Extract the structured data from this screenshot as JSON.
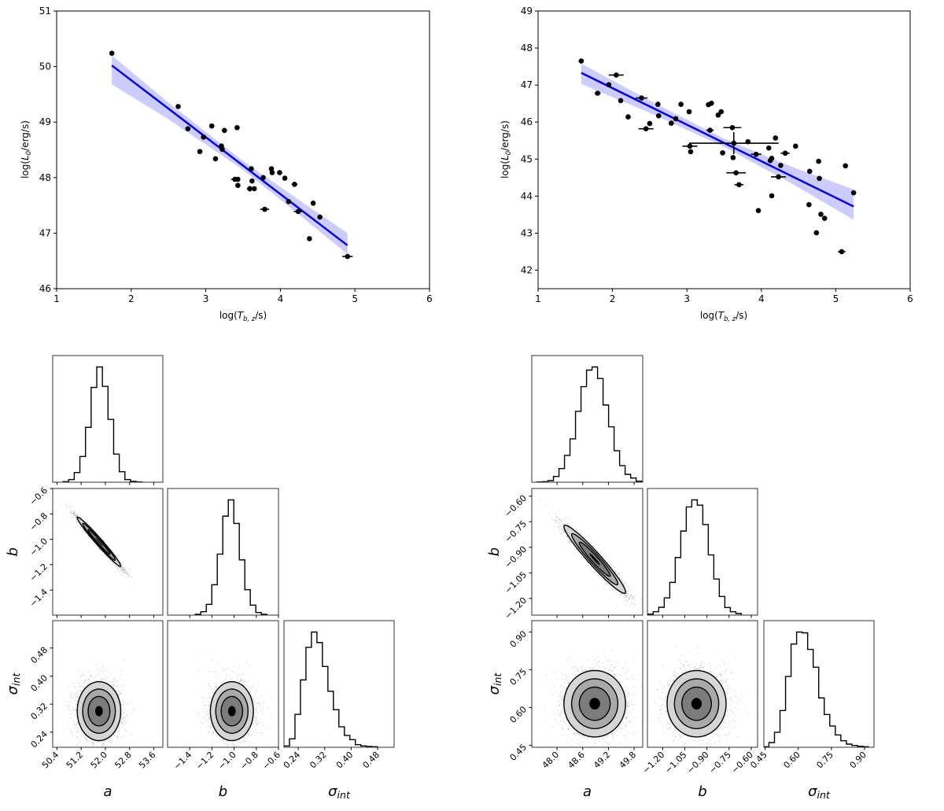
{
  "chart_data": [
    {
      "type": "scatter",
      "xlabel": {
        "pre": "log(",
        "sym": "T",
        "sub": "b, z",
        "post": "/s)"
      },
      "ylabel": {
        "pre": "log(",
        "sym": "L",
        "sub": "0",
        "post": "/erg/s)"
      },
      "xlim": [
        1,
        6
      ],
      "ylim": [
        46,
        51
      ],
      "xticks": [
        "1",
        "2",
        "3",
        "4",
        "5",
        "6"
      ],
      "yticks": [
        "46",
        "47",
        "48",
        "49",
        "50",
        "51"
      ],
      "grid": false,
      "colors": {
        "points": "#000000",
        "line": "#0000ee",
        "band": "#ccccff"
      },
      "points": [
        [
          1.74,
          50.24,
          0,
          0
        ],
        [
          2.63,
          49.28,
          0,
          0
        ],
        [
          2.76,
          48.88,
          0,
          0
        ],
        [
          2.97,
          48.73,
          0,
          0
        ],
        [
          2.92,
          48.47,
          0,
          0
        ],
        [
          3.08,
          48.93,
          0.03,
          0.03
        ],
        [
          3.25,
          48.85,
          0,
          0
        ],
        [
          3.13,
          48.34,
          0,
          0
        ],
        [
          3.21,
          48.57,
          0,
          0
        ],
        [
          3.22,
          48.51,
          0,
          0
        ],
        [
          3.42,
          48.9,
          0,
          0
        ],
        [
          3.39,
          47.97,
          0.05,
          0
        ],
        [
          3.43,
          47.97,
          0,
          0
        ],
        [
          3.43,
          47.86,
          0,
          0
        ],
        [
          3.61,
          48.16,
          0,
          0
        ],
        [
          3.62,
          47.94,
          0,
          0
        ],
        [
          3.59,
          47.8,
          0.04,
          0.05
        ],
        [
          3.65,
          47.8,
          0,
          0
        ],
        [
          3.77,
          48.0,
          0,
          0
        ],
        [
          3.79,
          47.43,
          0.06,
          0
        ],
        [
          3.88,
          48.16,
          0,
          0
        ],
        [
          3.89,
          48.09,
          0,
          0
        ],
        [
          3.99,
          48.09,
          0,
          0
        ],
        [
          4.06,
          47.99,
          0,
          0
        ],
        [
          4.19,
          47.88,
          0.04,
          0
        ],
        [
          4.11,
          47.57,
          0,
          0
        ],
        [
          4.24,
          47.39,
          0.06,
          0.03
        ],
        [
          4.44,
          47.54,
          0,
          0
        ],
        [
          4.53,
          47.29,
          0,
          0
        ],
        [
          4.39,
          46.9,
          0,
          0
        ],
        [
          4.9,
          46.58,
          0.07,
          0
        ]
      ],
      "fit_line": {
        "x": [
          1.74,
          4.9
        ],
        "y": [
          50.02,
          46.78
        ]
      },
      "band": {
        "x": [
          1.74,
          2.5,
          3.5,
          4.3,
          4.9
        ],
        "lower": [
          49.68,
          49.05,
          48.14,
          47.28,
          46.62
        ],
        "upper": [
          50.2,
          49.35,
          48.3,
          47.55,
          47.0
        ]
      }
    },
    {
      "type": "scatter",
      "xlabel": {
        "pre": "log(",
        "sym": "T",
        "sub": "b, z",
        "post": "/s)"
      },
      "ylabel": {
        "pre": "log(",
        "sym": "L",
        "sub": "0",
        "post": "/erg/s)"
      },
      "xlim": [
        1,
        6
      ],
      "ylim": [
        41.5,
        49
      ],
      "xticks": [
        "1",
        "2",
        "3",
        "4",
        "5",
        "6"
      ],
      "yticks": [
        "42",
        "43",
        "44",
        "45",
        "46",
        "47",
        "48",
        "49"
      ],
      "grid": false,
      "colors": {
        "points": "#000000",
        "line": "#0000ee",
        "band": "#ccccff"
      },
      "points": [
        [
          1.58,
          47.65,
          0.03,
          0
        ],
        [
          1.8,
          46.78,
          0.04,
          0
        ],
        [
          1.95,
          47.01,
          0,
          0
        ],
        [
          2.05,
          47.27,
          0.1,
          0
        ],
        [
          2.11,
          46.58,
          0,
          0
        ],
        [
          2.21,
          46.14,
          0,
          0
        ],
        [
          2.39,
          46.65,
          0.08,
          0
        ],
        [
          2.45,
          45.82,
          0.1,
          0
        ],
        [
          2.5,
          45.96,
          0,
          0
        ],
        [
          2.61,
          46.48,
          0,
          0
        ],
        [
          2.62,
          46.17,
          0,
          0
        ],
        [
          2.79,
          45.97,
          0,
          0
        ],
        [
          2.85,
          46.09,
          0,
          0
        ],
        [
          2.92,
          46.48,
          0,
          0
        ],
        [
          3.03,
          46.28,
          0,
          0
        ],
        [
          3.04,
          45.35,
          0.1,
          0
        ],
        [
          3.05,
          45.2,
          0,
          0
        ],
        [
          3.29,
          46.47,
          0,
          0
        ],
        [
          3.33,
          46.51,
          0,
          0
        ],
        [
          3.42,
          46.19,
          0,
          0
        ],
        [
          3.46,
          46.28,
          0,
          0
        ],
        [
          3.31,
          45.78,
          0.05,
          0
        ],
        [
          3.48,
          45.17,
          0,
          0
        ],
        [
          3.61,
          45.85,
          0.12,
          0
        ],
        [
          3.63,
          45.43,
          0.6,
          0.3
        ],
        [
          3.62,
          45.04,
          0,
          0
        ],
        [
          3.66,
          44.63,
          0.13,
          0
        ],
        [
          3.7,
          44.31,
          0.06,
          0
        ],
        [
          3.82,
          45.47,
          0,
          0
        ],
        [
          3.93,
          45.13,
          0.07,
          0
        ],
        [
          4.1,
          45.3,
          0,
          0
        ],
        [
          4.19,
          45.57,
          0,
          0
        ],
        [
          4.12,
          44.96,
          0,
          0
        ],
        [
          4.14,
          45.02,
          0,
          0
        ],
        [
          4.26,
          44.83,
          0,
          0
        ],
        [
          4.23,
          44.52,
          0.1,
          0.05
        ],
        [
          4.32,
          45.16,
          0.06,
          0
        ],
        [
          4.46,
          45.35,
          0,
          0
        ],
        [
          4.14,
          44.01,
          0,
          0
        ],
        [
          3.96,
          43.61,
          0,
          0
        ],
        [
          4.65,
          44.67,
          0,
          0
        ],
        [
          4.64,
          43.77,
          0.03,
          0
        ],
        [
          4.77,
          44.94,
          0,
          0
        ],
        [
          4.78,
          44.48,
          0,
          0
        ],
        [
          4.8,
          43.51,
          0,
          0
        ],
        [
          4.85,
          43.4,
          0,
          0
        ],
        [
          4.74,
          43.01,
          0,
          0
        ],
        [
          5.08,
          42.5,
          0.05,
          0
        ],
        [
          5.13,
          44.82,
          0,
          0
        ],
        [
          5.24,
          44.09,
          0,
          0
        ]
      ],
      "fit_line": {
        "x": [
          1.58,
          5.24
        ],
        "y": [
          47.33,
          43.72
        ]
      },
      "band": {
        "x": [
          1.58,
          2.5,
          3.5,
          4.4,
          5.24
        ],
        "lower": [
          47.03,
          46.25,
          45.33,
          44.35,
          43.36
        ],
        "upper": [
          47.58,
          46.58,
          45.55,
          44.8,
          44.18
        ]
      }
    },
    {
      "type": "corner",
      "params": [
        {
          "sym": "a",
          "sub": "",
          "xlim": [
            50.26,
            53.9
          ],
          "ylim": [
            50.26,
            53.9
          ],
          "ticks": [
            "50.4",
            "51.2",
            "52.0",
            "52.8",
            "53.6"
          ]
        },
        {
          "sym": "b",
          "sub": "",
          "xlim": [
            -1.6,
            -0.6
          ],
          "ylim": [
            -1.597,
            -0.6
          ],
          "ticks": [
            "−1.4",
            "−1.2",
            "−1.0",
            "−0.8",
            "−0.6"
          ]
        },
        {
          "sym": "σ",
          "sub": "int",
          "xlim": [
            0.197,
            0.53
          ],
          "ylim": [
            0.197,
            0.558
          ],
          "ticks": [
            "0.24",
            "0.32",
            "0.40",
            "0.48"
          ]
        }
      ],
      "histograms": [
        {
          "bin_start": 50.6,
          "bin_width": 0.186,
          "counts": [
            2,
            10,
            37,
            98,
            209,
            361,
            439,
            365,
            239,
            107,
            40,
            10,
            3,
            1
          ]
        },
        {
          "bin_start": -1.35,
          "bin_width": 0.0496,
          "counts": [
            3,
            13,
            41,
            116,
            233,
            378,
            440,
            350,
            211,
            97,
            38,
            10,
            3
          ]
        },
        {
          "bin_start": 0.197,
          "bin_width": 0.0166,
          "counts": [
            5,
            32,
            125,
            256,
            380,
            438,
            398,
            307,
            213,
            143,
            78,
            45,
            29,
            10,
            5,
            3,
            2
          ]
        }
      ],
      "contour_summary": {
        "mean": [
          51.79,
          -1.02,
          0.3
        ],
        "std": [
          0.36,
          0.097,
          0.042
        ],
        "corr": [
          [
            1,
            -0.98,
            0
          ],
          [
            -0.98,
            1,
            0
          ],
          [
            0,
            0,
            1
          ]
        ]
      },
      "colors": {
        "hist": "#000000",
        "samples": "#444444",
        "levels": [
          "#d6d6d6",
          "#a9a9a9",
          "#7c7c7c",
          "#000000"
        ]
      }
    },
    {
      "type": "corner",
      "params": [
        {
          "sym": "a",
          "sub": "",
          "xlim": [
            47.41,
            50.0
          ],
          "ylim": [
            47.41,
            50.0
          ],
          "ticks": [
            "48.0",
            "48.6",
            "49.2",
            "49.8"
          ]
        },
        {
          "sym": "b",
          "sub": "",
          "xlim": [
            -1.303,
            -0.557
          ],
          "ylim": [
            -1.298,
            -0.555
          ],
          "ticks": [
            "−1.20",
            "−1.05",
            "−0.90",
            "−0.75",
            "−0.60"
          ]
        },
        {
          "sym": "σ",
          "sub": "int",
          "xlim": [
            0.444,
            0.943
          ],
          "ylim": [
            0.442,
            0.945
          ],
          "ticks": [
            "0.45",
            "0.60",
            "0.75",
            "0.90"
          ]
        }
      ],
      "histograms": [
        {
          "bin_start": 47.53,
          "bin_width": 0.1287,
          "counts": [
            1,
            2,
            6,
            22,
            52,
            102,
            165,
            270,
            364,
            427,
            439,
            395,
            294,
            211,
            120,
            63,
            30,
            16,
            4
          ]
        },
        {
          "bin_start": -1.301,
          "bin_width": 0.0373,
          "counts": [
            4,
            13,
            30,
            66,
            125,
            220,
            321,
            413,
            440,
            420,
            346,
            230,
            138,
            71,
            29,
            13,
            6
          ]
        },
        {
          "bin_start": 0.442,
          "bin_width": 0.02506,
          "counts": [
            2,
            18,
            57,
            140,
            270,
            393,
            439,
            436,
            373,
            305,
            188,
            125,
            81,
            47,
            25,
            12,
            7,
            4,
            2
          ]
        }
      ],
      "contour_summary": {
        "mean": [
          48.88,
          -0.97,
          0.615
        ],
        "std": [
          0.36,
          0.1,
          0.066
        ],
        "corr": [
          [
            1,
            -0.96,
            0
          ],
          [
            -0.96,
            1,
            0
          ],
          [
            0,
            0,
            1
          ]
        ]
      },
      "colors": {
        "hist": "#000000",
        "samples": "#444444",
        "levels": [
          "#d6d6d6",
          "#a9a9a9",
          "#7c7c7c",
          "#000000"
        ]
      }
    }
  ]
}
